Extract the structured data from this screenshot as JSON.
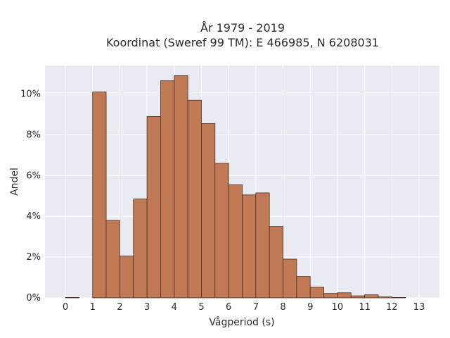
{
  "chart_data": {
    "type": "bar",
    "title_line1": "År 1979 - 2019",
    "title_line2": "Koordinat (Sweref 99 TM): E 466985, N 6208031",
    "xlabel": "Vågperiod (s)",
    "ylabel": "Andel",
    "xlim": [
      -0.75,
      13.75
    ],
    "ylim": [
      0,
      11.4
    ],
    "xticks": [
      0,
      1,
      2,
      3,
      4,
      5,
      6,
      7,
      8,
      9,
      10,
      11,
      12,
      13
    ],
    "yticks": [
      0,
      2,
      4,
      6,
      8,
      10
    ],
    "ytick_labels": [
      "0%",
      "2%",
      "4%",
      "6%",
      "8%",
      "10%"
    ],
    "bin_width": 0.5,
    "bins": [
      {
        "start": 0.0,
        "value": 0.02
      },
      {
        "start": 0.5,
        "value": 0.0
      },
      {
        "start": 1.0,
        "value": 10.1
      },
      {
        "start": 1.5,
        "value": 3.8
      },
      {
        "start": 2.0,
        "value": 2.05
      },
      {
        "start": 2.5,
        "value": 4.85
      },
      {
        "start": 3.0,
        "value": 8.9
      },
      {
        "start": 3.5,
        "value": 10.65
      },
      {
        "start": 4.0,
        "value": 10.9
      },
      {
        "start": 4.5,
        "value": 9.7
      },
      {
        "start": 5.0,
        "value": 8.55
      },
      {
        "start": 5.5,
        "value": 6.6
      },
      {
        "start": 6.0,
        "value": 5.55
      },
      {
        "start": 6.5,
        "value": 5.05
      },
      {
        "start": 7.0,
        "value": 5.15
      },
      {
        "start": 7.5,
        "value": 3.5
      },
      {
        "start": 8.0,
        "value": 1.9
      },
      {
        "start": 8.5,
        "value": 1.05
      },
      {
        "start": 9.0,
        "value": 0.52
      },
      {
        "start": 9.5,
        "value": 0.22
      },
      {
        "start": 10.0,
        "value": 0.25
      },
      {
        "start": 10.5,
        "value": 0.1
      },
      {
        "start": 11.0,
        "value": 0.15
      },
      {
        "start": 11.5,
        "value": 0.05
      },
      {
        "start": 12.0,
        "value": 0.02
      }
    ],
    "grid": true,
    "colors": {
      "bar_fill": "#bf7a55",
      "bar_edge": "#4a3023",
      "plot_bg": "#eaeaf2",
      "grid": "#ffffff"
    }
  }
}
